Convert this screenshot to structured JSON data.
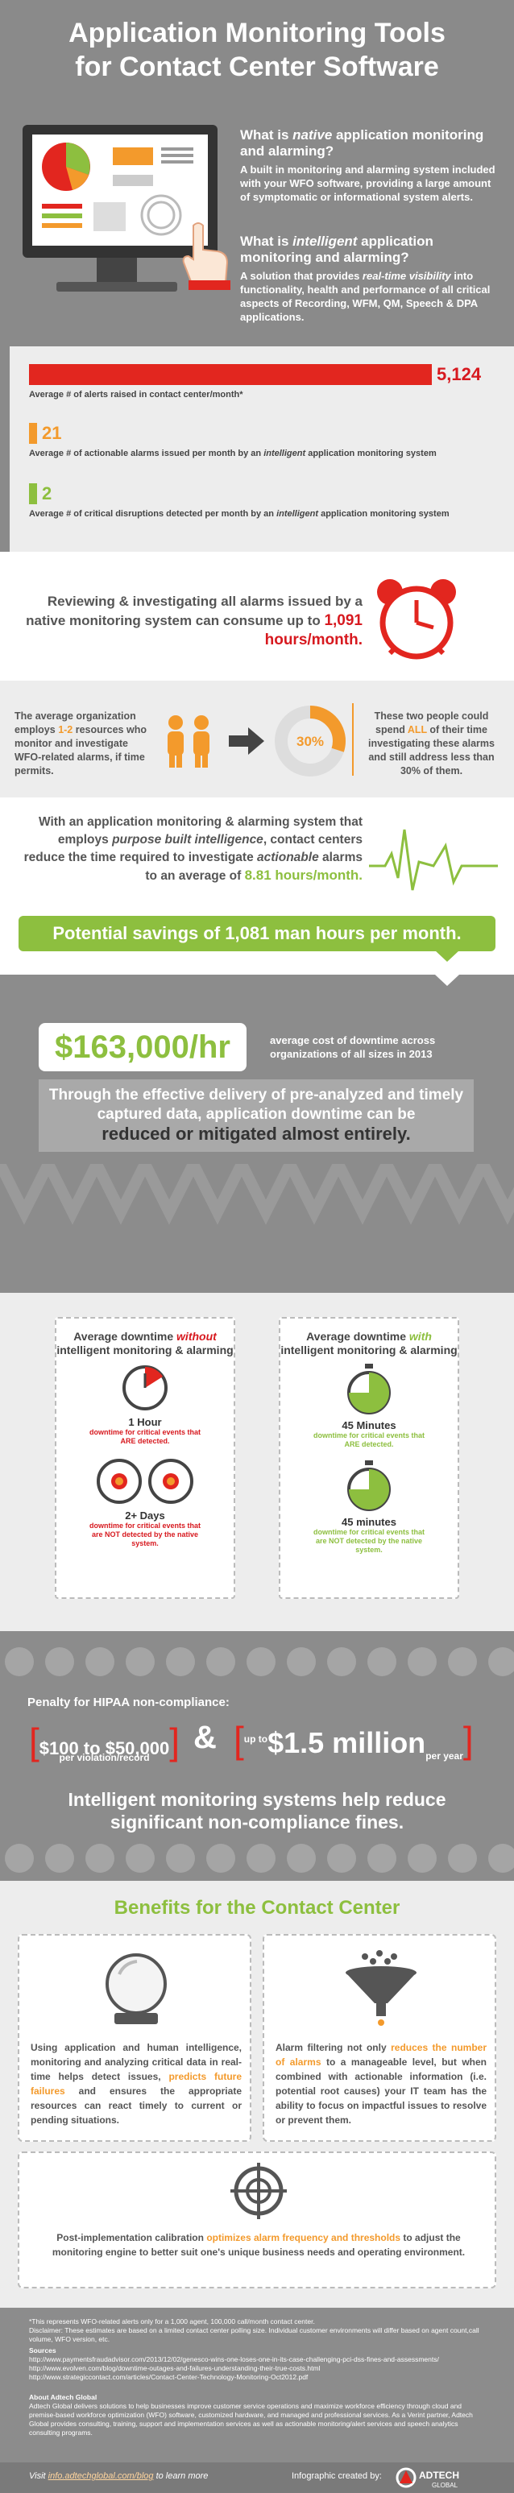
{
  "hero": {
    "title_line1": "Application Monitoring Tools",
    "title_line2": "for Contact Center Software",
    "q1_pre": "What is ",
    "q1_em": "native",
    "q1_post": " application monitoring and alarming?",
    "a1": "A built in monitoring and alarming system included with your WFO software, providing a large amount of symptomatic or informational system alerts.",
    "q2_pre": "What is ",
    "q2_em": "intelligent",
    "q2_post": " application monitoring and alarming?",
    "a2_pre": "A solution that provides ",
    "a2_em": "real-time visibility",
    "a2_post": " into functionality, health and performance of all critical aspects of Recording, WFM, QM, Speech & DPA applications."
  },
  "stats": {
    "items": [
      {
        "value": "5,124",
        "label_pre": "Average # of alerts raised in contact center/month*",
        "label_em": "",
        "label_post": "",
        "color": "#e2261f",
        "fraction": 1.0
      },
      {
        "value": "21",
        "label_pre": "Average # of actionable alarms issued per month by an ",
        "label_em": "intelligent",
        "label_post": " application monitoring system",
        "color": "#f39a2c",
        "fraction": 0.004
      },
      {
        "value": "2",
        "label_pre": "Average # of critical disruptions detected per month by an ",
        "label_em": "intelligent",
        "label_post": " application monitoring system",
        "color": "#8dbf3f",
        "fraction": 0.0004
      }
    ]
  },
  "clock": {
    "text": "Reviewing & investigating all alarms issued by a native monitoring system can consume up to",
    "hours": "1,091 hours/month."
  },
  "resources": {
    "left_pre": "The average organization employs ",
    "left_num": "1-2",
    "left_post": " resources who monitor and investigate WFO-related alarms, if time permits.",
    "pct": "30%",
    "right_pre": "These two people could spend ",
    "right_all": "ALL",
    "right_post": " of their time investigating these alarms and still address less than 30% of them."
  },
  "pbi": {
    "text_pre": "With an application monitoring & alarming system that employs ",
    "text_em": "purpose built intelligence",
    "text_mid": ", contact centers reduce the time required to investigate ",
    "text_em2": "actionable",
    "text_post": " alarms to an average of ",
    "hours": "8.81 hours/month.",
    "savings": "Potential savings of 1,081 man hours per month."
  },
  "downtime": {
    "cost": "$163,000/hr",
    "cost_desc": "average cost of downtime across organizations of all sizes in 2013",
    "through": "Through the effective delivery of pre-analyzed and timely captured data, application downtime can be",
    "through_bold": "reduced or mitigated almost entirely."
  },
  "cards": {
    "left": {
      "title_pre": "Average downtime ",
      "title_em": "without",
      "title_post": " intelligent monitoring & alarming",
      "v1": "1 Hour",
      "d1": "downtime for critical events that ARE detected.",
      "v2": "2+ Days",
      "d2": "downtime for critical events that are NOT detected by the native system."
    },
    "right": {
      "title_pre": "Average downtime ",
      "title_em": "with",
      "title_post": " intelligent monitoring & alarming",
      "v1": "45 Minutes",
      "d1": "downtime for critical events that ARE detected.",
      "v2": "45 minutes",
      "d2": "downtime for critical events that are NOT detected by the native system."
    }
  },
  "hipaa": {
    "penalty": "Penalty for HIPAA non-compliance:",
    "fine1": "$100 to $50,000",
    "fine1_sub": "per violation/record",
    "amp": "&",
    "fine2_pre": "up to",
    "fine2": "$1.5 million",
    "fine2_post": "per year",
    "reduce": "Intelligent monitoring systems help reduce significant non-compliance fines."
  },
  "benefits": {
    "title": "Benefits for the Contact Center",
    "b1_pre": "Using application and human intelligence, monitoring and analyzing critical data in real-time helps detect issues, ",
    "b1_em": "predicts future failures",
    "b1_post": " and ensures the appropriate resources can react timely to current or pending situations.",
    "b2_pre": "Alarm filtering not only ",
    "b2_em": "reduces the number of alarms",
    "b2_post": " to a manageable level, but when combined with actionable information (i.e. potential root causes) your IT team has the ability to focus on impactful issues to resolve or prevent them.",
    "b3_pre": "Post-implementation calibration ",
    "b3_em": "optimizes alarm frequency and thresholds",
    "b3_post": " to adjust the monitoring engine to better suit one's unique business needs and operating environment."
  },
  "footer": {
    "note1": "*This represents WFO-related alerts only for a 1,000 agent, 100,000 call/month contact center.",
    "note2": "Disclaimer: These estimates are based on a limited contact center polling size. Individual customer environments will differ based on agent count,call volume, WFO version, etc.",
    "sources_h": "Sources",
    "src1": "http://www.paymentsfraudadvisor.com/2013/12/02/genesco-wins-one-loses-one-in-its-case-challenging-pci-dss-fines-and-assessments/",
    "src2": "http://www.evolven.com/blog/downtime-outages-and-failures-understanding-their-true-costs.html",
    "src3": "http://www.strategiccontact.com/articles/Contact-Center-Technology-Monitoring-Oct2012.pdf",
    "about_h": "About Adtech Global",
    "about": "Adtech Global delivers solutions to help businesses improve customer service operations and maximize workforce efficiency through cloud and premise-based workforce optimization (WFO) software, customized hardware, and managed and professional services. As a Verint partner, Adtech Global provides consulting, training, support and implementation services as well as actionable monitoring/alert services and speech analytics consulting programs.",
    "visit_pre": "Visit ",
    "visit_link": "info.adtechglobal.com/blog",
    "visit_post": " to learn more",
    "credit": "Infographic created by:",
    "logo": "ADTECH GLOBAL"
  }
}
